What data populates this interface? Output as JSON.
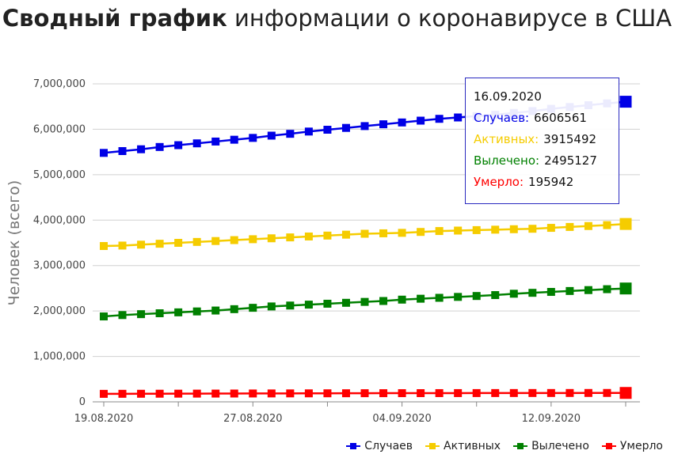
{
  "title": {
    "bold": "Сводный график",
    "rest": "информации о коронавирусе в США"
  },
  "chart_data": {
    "type": "line",
    "ylabel": "Человек (всего)",
    "xlabel": "",
    "ylim": [
      0,
      7000000
    ],
    "y_ticks": [
      0,
      1000000,
      2000000,
      3000000,
      4000000,
      5000000,
      6000000,
      7000000
    ],
    "y_tick_labels": [
      "0",
      "1,000,000",
      "2,000,000",
      "3,000,000",
      "4,000,000",
      "5,000,000",
      "6,000,000",
      "7,000,000"
    ],
    "x": [
      "19.08.2020",
      "20.08.2020",
      "21.08.2020",
      "22.08.2020",
      "23.08.2020",
      "24.08.2020",
      "25.08.2020",
      "26.08.2020",
      "27.08.2020",
      "28.08.2020",
      "29.08.2020",
      "30.08.2020",
      "31.08.2020",
      "01.09.2020",
      "02.09.2020",
      "03.09.2020",
      "04.09.2020",
      "05.09.2020",
      "06.09.2020",
      "07.09.2020",
      "08.09.2020",
      "09.09.2020",
      "10.09.2020",
      "11.09.2020",
      "12.09.2020",
      "13.09.2020",
      "14.09.2020",
      "15.09.2020",
      "16.09.2020"
    ],
    "x_tick_labels": [
      "19.08.2020",
      "27.08.2020",
      "04.09.2020",
      "12.09.2020"
    ],
    "grid": true,
    "legend_position": "bottom-right",
    "series": [
      {
        "name": "Случаев",
        "color": "#0000e6",
        "values": [
          5480000,
          5520000,
          5560000,
          5610000,
          5650000,
          5690000,
          5730000,
          5770000,
          5810000,
          5860000,
          5900000,
          5950000,
          5990000,
          6030000,
          6070000,
          6110000,
          6150000,
          6190000,
          6230000,
          6260000,
          6290000,
          6320000,
          6360000,
          6400000,
          6450000,
          6490000,
          6530000,
          6570000,
          6606561
        ]
      },
      {
        "name": "Активных",
        "color": "#f5cc00",
        "values": [
          3430000,
          3440000,
          3460000,
          3480000,
          3500000,
          3520000,
          3540000,
          3560000,
          3580000,
          3600000,
          3620000,
          3640000,
          3660000,
          3680000,
          3700000,
          3710000,
          3720000,
          3740000,
          3760000,
          3770000,
          3780000,
          3790000,
          3800000,
          3810000,
          3830000,
          3850000,
          3870000,
          3890000,
          3915492
        ]
      },
      {
        "name": "Вылечено",
        "color": "#008000",
        "values": [
          1880000,
          1910000,
          1930000,
          1950000,
          1970000,
          1990000,
          2010000,
          2040000,
          2070000,
          2100000,
          2120000,
          2140000,
          2160000,
          2180000,
          2200000,
          2220000,
          2250000,
          2270000,
          2290000,
          2310000,
          2330000,
          2350000,
          2380000,
          2400000,
          2420000,
          2440000,
          2460000,
          2480000,
          2495127
        ]
      },
      {
        "name": "Умерло",
        "color": "#ff0000",
        "values": [
          176000,
          177000,
          178000,
          179000,
          180000,
          181000,
          182000,
          183000,
          184000,
          185000,
          186000,
          187000,
          188000,
          189000,
          190000,
          190500,
          191000,
          191500,
          192000,
          192500,
          193000,
          193500,
          194000,
          194200,
          194500,
          194800,
          195200,
          195600,
          195942
        ]
      }
    ]
  },
  "tooltip": {
    "date": "16.09.2020",
    "rows": [
      {
        "label": "Случаев:",
        "value": "6606561",
        "color": "#0000e6"
      },
      {
        "label": "Активных:",
        "value": "3915492",
        "color": "#f5cc00"
      },
      {
        "label": "Вылечено:",
        "value": "2495127",
        "color": "#008000"
      },
      {
        "label": "Умерло:",
        "value": "195942",
        "color": "#ff0000"
      }
    ]
  }
}
